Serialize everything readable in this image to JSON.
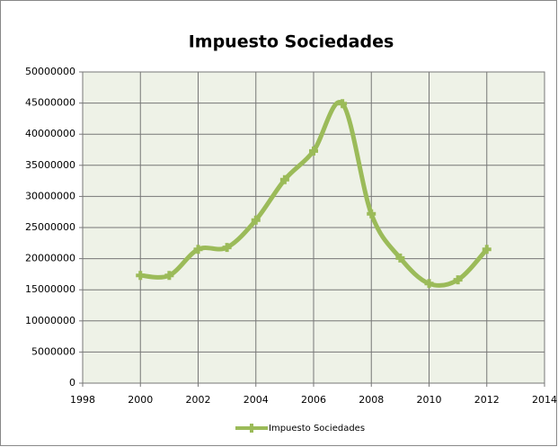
{
  "chart_data": {
    "type": "line",
    "title": "Impuesto Sociedades",
    "x": [
      2000,
      2001,
      2002,
      2003,
      2004,
      2005,
      2006,
      2007,
      2008,
      2009,
      2010,
      2011,
      2012
    ],
    "series": [
      {
        "name": "Impuesto Sociedades",
        "color": "#9bbb59",
        "values": [
          17300000,
          17300000,
          21500000,
          21800000,
          26200000,
          32700000,
          37300000,
          44900000,
          27200000,
          20100000,
          16000000,
          16600000,
          21500000
        ]
      }
    ],
    "xlim": [
      1998,
      2014
    ],
    "xticks": [
      1998,
      2000,
      2002,
      2004,
      2006,
      2008,
      2010,
      2012,
      2014
    ],
    "ylim": [
      0,
      50000000
    ],
    "yticks": [
      0,
      5000000,
      10000000,
      15000000,
      20000000,
      25000000,
      30000000,
      35000000,
      40000000,
      45000000,
      50000000
    ],
    "grid": true,
    "legend": "bottom"
  }
}
